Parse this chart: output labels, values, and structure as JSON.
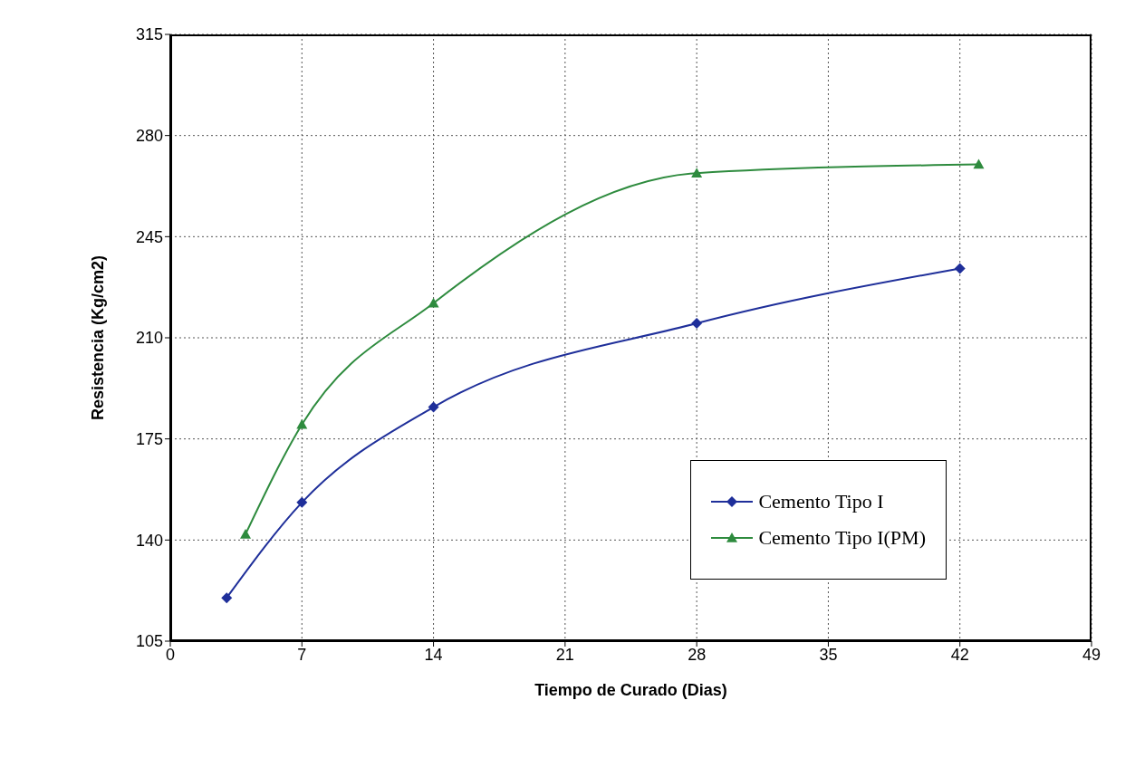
{
  "chart_data": {
    "type": "line",
    "xlabel": "Tiempo de Curado (Dias)",
    "ylabel": "Resistencia (Kg/cm2)",
    "xlim": [
      0,
      49
    ],
    "xticks": [
      0,
      7,
      14,
      21,
      28,
      35,
      42,
      49
    ],
    "ylim": [
      105,
      315
    ],
    "yticks": [
      105,
      140,
      175,
      210,
      245,
      280,
      315
    ],
    "grid": true,
    "legend": "right",
    "series": [
      {
        "name": "Cemento Tipo I",
        "color": "#1f2f9a",
        "marker": "diamond",
        "x": [
          3,
          7,
          14,
          28,
          42
        ],
        "values": [
          120,
          153,
          186,
          215,
          234
        ]
      },
      {
        "name": "Cemento Tipo I(PM)",
        "color": "#2e8b3e",
        "marker": "triangle",
        "x": [
          4,
          7,
          14,
          28,
          43
        ],
        "values": [
          142,
          180,
          222,
          267,
          270
        ]
      }
    ]
  }
}
